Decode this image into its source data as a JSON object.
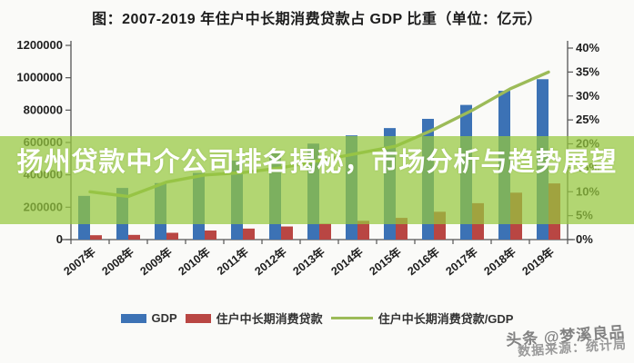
{
  "page": {
    "banner_text": "扬州贷款中介公司排名揭秘，市场分析与趋势展望",
    "watermark": "头条 @梦溪良品",
    "source": "数据来源：统计局"
  },
  "colors": {
    "gdp_bar": "#3C72B5",
    "loan_bar": "#B94643",
    "ratio_line": "#9CBB58",
    "banner_fill": "rgba(150,199,62,0.72)",
    "axis": "#555555",
    "tick_label": "#1F1F1F",
    "banner_text": "#FFFFFF"
  },
  "chart_data": {
    "type": "bar",
    "title": "图：2007-2019 年住户中长期消费贷款占 GDP 比重（单位：亿元）",
    "categories": [
      "2007年",
      "2008年",
      "2009年",
      "2010年",
      "2011年",
      "2012年",
      "2013年",
      "2014年",
      "2015年",
      "2016年",
      "2017年",
      "2018年",
      "2019年"
    ],
    "series": [
      {
        "name": "GDP",
        "type": "bar",
        "axis": "left",
        "color": "#3C72B5",
        "values": [
          270000,
          319000,
          349000,
          412000,
          488000,
          539000,
          593000,
          644000,
          689000,
          746000,
          832000,
          919000,
          991000
        ]
      },
      {
        "name": "住户中长期消费贷款",
        "type": "bar",
        "axis": "left",
        "color": "#B94643",
        "values": [
          27000,
          29000,
          42000,
          56000,
          68000,
          81000,
          98000,
          116000,
          134000,
          172000,
          225000,
          290000,
          347000
        ]
      },
      {
        "name": "住户中长期消费贷款/GDP",
        "type": "line",
        "axis": "right",
        "color": "#9CBB58",
        "values": [
          10,
          9,
          12,
          13.5,
          14,
          15,
          16.5,
          18,
          19.5,
          23,
          27,
          31.5,
          35
        ]
      }
    ],
    "left_axis": {
      "max": 1200000,
      "ticks": [
        0,
        200000,
        400000,
        600000,
        800000,
        1000000,
        1200000
      ],
      "labels": [
        "0",
        "200000",
        "400000",
        "600000",
        "800000",
        "1000000",
        "1200000"
      ]
    },
    "right_axis": {
      "max": 40,
      "ticks": [
        0,
        5,
        10,
        15,
        20,
        25,
        30,
        35,
        40
      ],
      "labels": [
        "0%",
        "5%",
        "10%",
        "15%",
        "20%",
        "25%",
        "30%",
        "35%",
        "40%"
      ]
    },
    "xlabel": "",
    "ylabel": "",
    "legend_position": "bottom",
    "grid": false
  }
}
